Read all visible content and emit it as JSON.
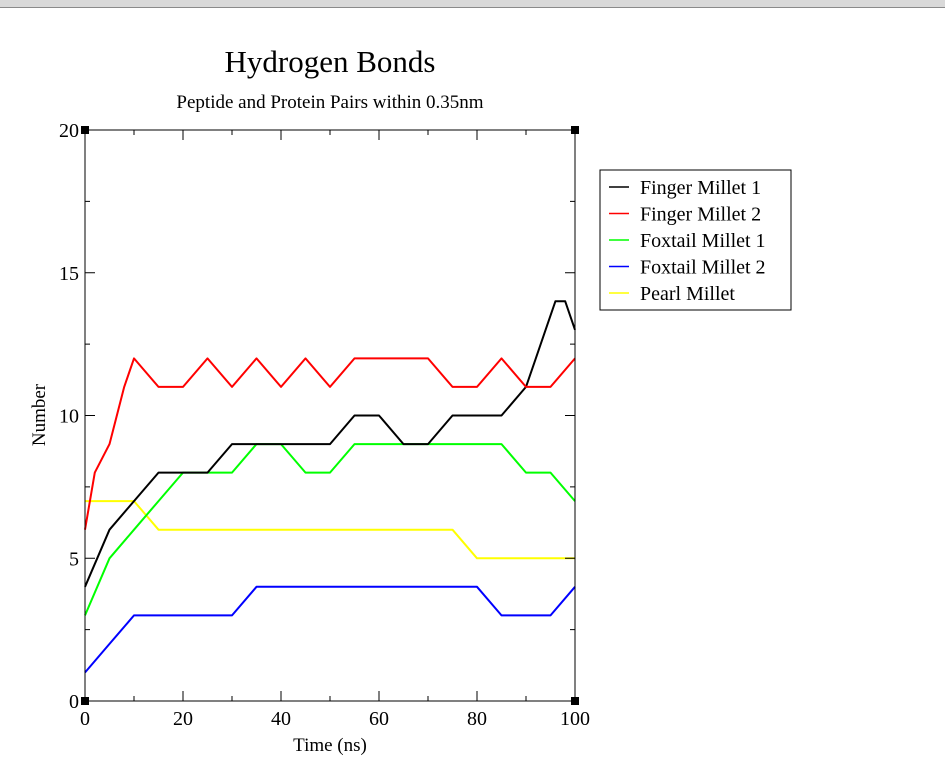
{
  "chart_data": {
    "type": "line",
    "title": "Hydrogen Bonds",
    "subtitle": "Peptide and Protein Pairs within 0.35nm",
    "xlabel": "Time (ns)",
    "ylabel": "Number",
    "xlim": [
      0,
      100
    ],
    "ylim": [
      0,
      20
    ],
    "x_ticks": [
      "0",
      "20",
      "40",
      "60",
      "80",
      "100"
    ],
    "y_ticks": [
      "0",
      "5",
      "10",
      "15",
      "20"
    ],
    "legend_position": "right",
    "series": [
      {
        "name": "Finger Millet 1",
        "color": "#000000",
        "x": [
          0,
          5,
          10,
          15,
          20,
          25,
          30,
          35,
          40,
          45,
          50,
          55,
          60,
          65,
          70,
          75,
          80,
          85,
          90,
          92,
          94,
          96,
          98,
          100
        ],
        "y": [
          4,
          6,
          7,
          8,
          8,
          8,
          9,
          9,
          9,
          9,
          9,
          10,
          10,
          9,
          9,
          10,
          10,
          10,
          11,
          12,
          13,
          14,
          14,
          13
        ]
      },
      {
        "name": "Finger Millet 2",
        "color": "#ff0000",
        "x": [
          0,
          2,
          5,
          8,
          10,
          15,
          20,
          25,
          30,
          35,
          40,
          45,
          50,
          55,
          60,
          65,
          70,
          75,
          80,
          85,
          90,
          95,
          100
        ],
        "y": [
          6,
          8,
          9,
          11,
          12,
          11,
          11,
          12,
          11,
          12,
          11,
          12,
          11,
          12,
          12,
          12,
          12,
          11,
          11,
          12,
          11,
          11,
          12
        ]
      },
      {
        "name": "Foxtail Millet 1",
        "color": "#00ff00",
        "x": [
          0,
          5,
          10,
          15,
          20,
          25,
          30,
          35,
          40,
          45,
          50,
          55,
          60,
          65,
          70,
          75,
          80,
          85,
          90,
          95,
          100
        ],
        "y": [
          3,
          5,
          6,
          7,
          8,
          8,
          8,
          9,
          9,
          8,
          8,
          9,
          9,
          9,
          9,
          9,
          9,
          9,
          8,
          8,
          7
        ]
      },
      {
        "name": "Foxtail Millet 2",
        "color": "#0000ff",
        "x": [
          0,
          5,
          10,
          15,
          20,
          25,
          30,
          35,
          40,
          45,
          50,
          55,
          60,
          65,
          70,
          75,
          80,
          85,
          90,
          95,
          100
        ],
        "y": [
          1,
          2,
          3,
          3,
          3,
          3,
          3,
          4,
          4,
          4,
          4,
          4,
          4,
          4,
          4,
          4,
          4,
          3,
          3,
          3,
          4
        ]
      },
      {
        "name": "Pearl Millet",
        "color": "#ffff00",
        "x": [
          0,
          5,
          10,
          15,
          20,
          25,
          30,
          35,
          40,
          45,
          50,
          55,
          60,
          65,
          70,
          75,
          80,
          85,
          90,
          95,
          100
        ],
        "y": [
          7,
          7,
          7,
          6,
          6,
          6,
          6,
          6,
          6,
          6,
          6,
          6,
          6,
          6,
          6,
          6,
          5,
          5,
          5,
          5,
          5
        ]
      }
    ]
  }
}
